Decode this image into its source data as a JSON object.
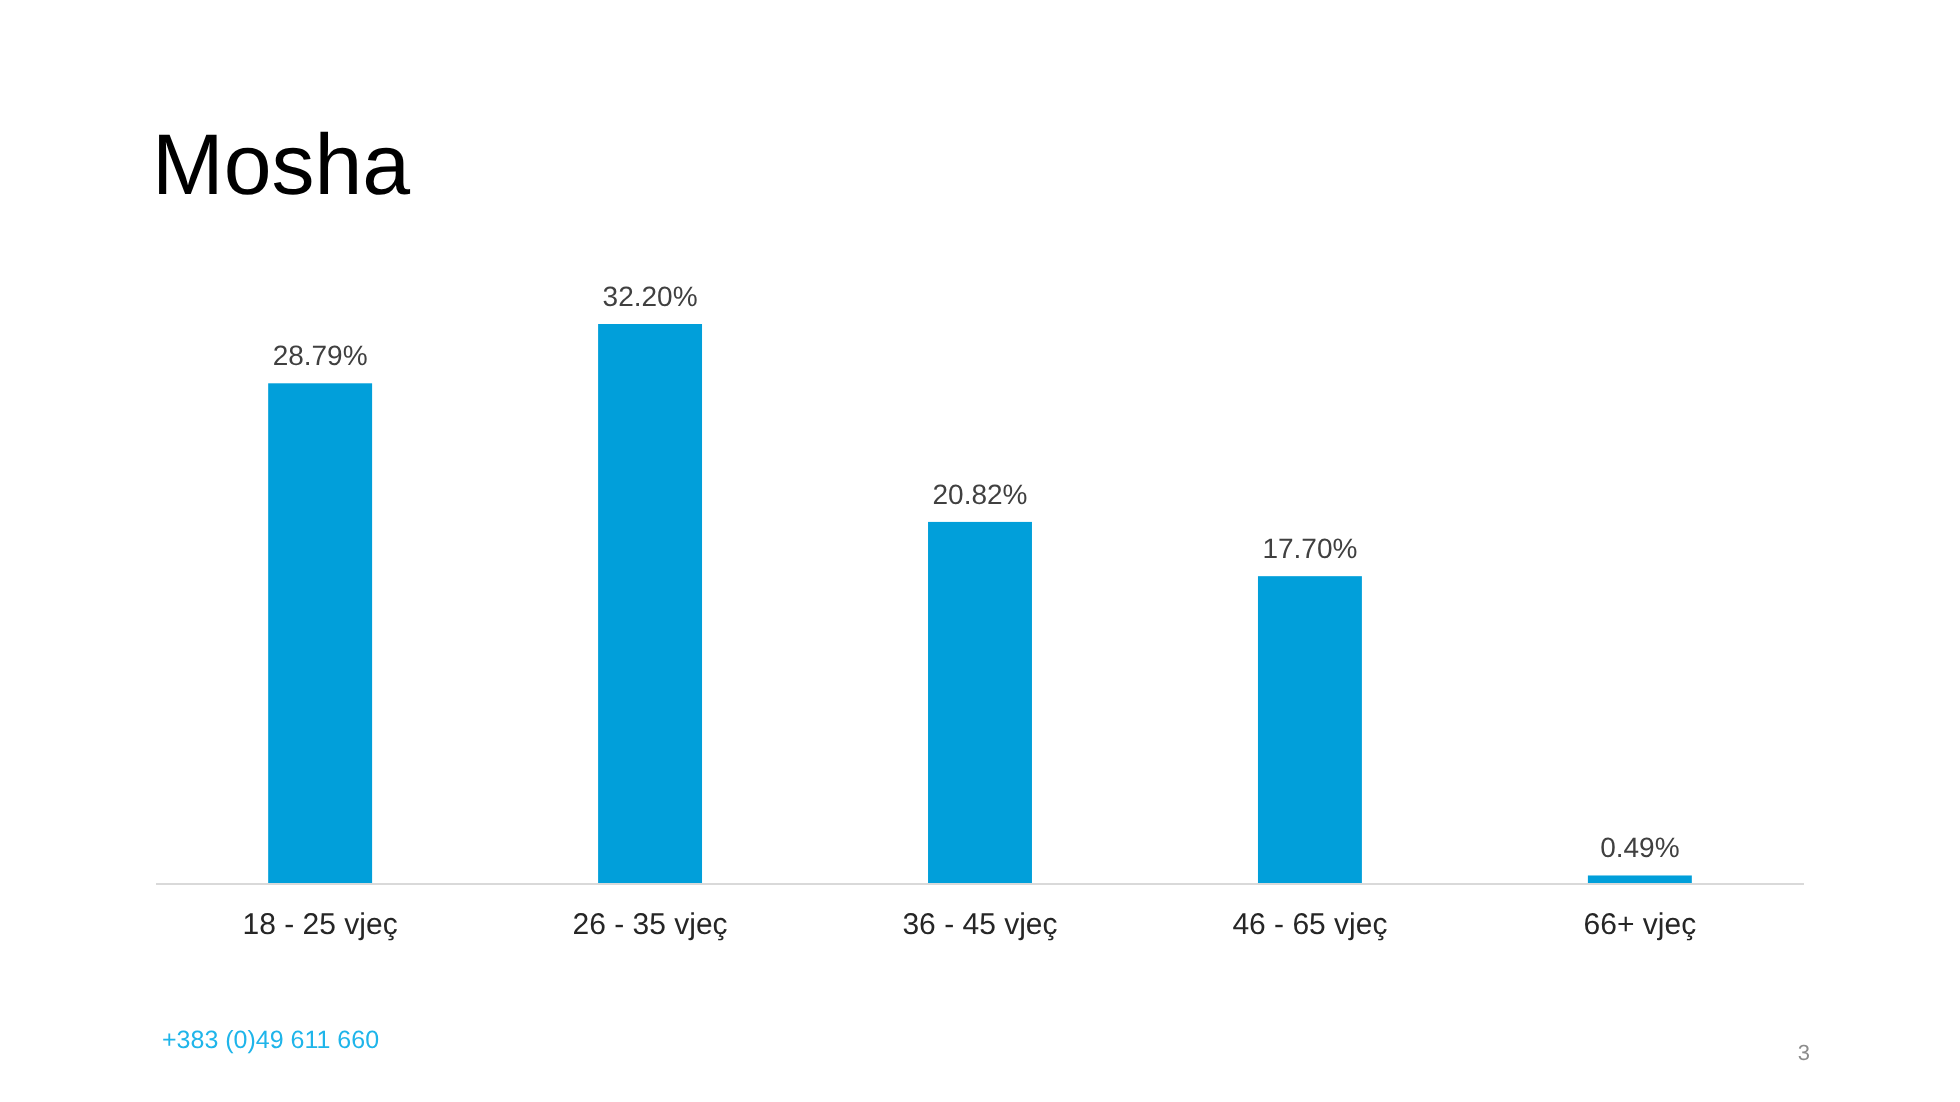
{
  "chart_data": {
    "type": "bar",
    "title": "Mosha",
    "categories": [
      "18 - 25 vjeç",
      "26 - 35 vjeç",
      "36 - 45 vjeç",
      "46 - 65 vjeç",
      "66+ vjeç"
    ],
    "values": [
      28.79,
      32.2,
      20.82,
      17.7,
      0.49
    ],
    "value_labels": [
      "28.79%",
      "32.20%",
      "20.82%",
      "17.70%",
      "0.49%"
    ],
    "color": "#019fda",
    "annotations": [
      "+383 (0)49 611 660",
      "3"
    ]
  }
}
